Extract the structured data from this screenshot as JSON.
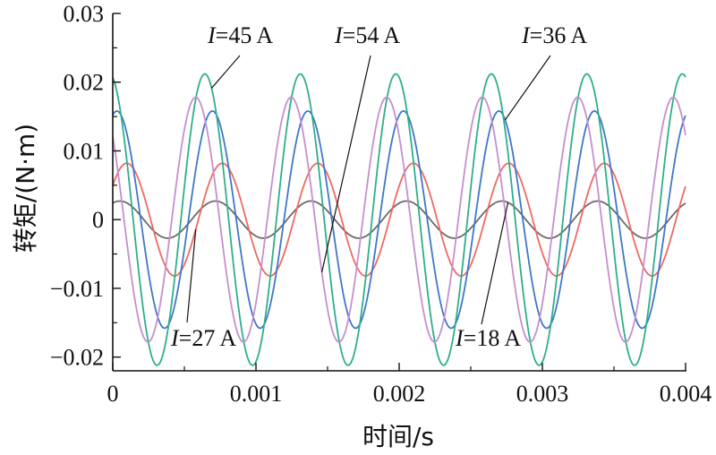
{
  "chart_data": {
    "type": "line",
    "xlabel": "时间/s",
    "ylabel": "转矩/(N·m)",
    "xlim": [
      0,
      0.004
    ],
    "ylim": [
      -0.022,
      0.03
    ],
    "x_ticks": [
      0,
      0.001,
      0.002,
      0.003,
      0.004
    ],
    "x_tick_labels": [
      "0",
      "0.001",
      "0.002",
      "0.003",
      "0.004"
    ],
    "y_ticks": [
      -0.02,
      -0.01,
      0,
      0.01,
      0.02,
      0.03
    ],
    "y_tick_labels": [
      "−0.02",
      "−0.01",
      "0",
      "0.01",
      "0.02",
      "0.03"
    ],
    "grid": false,
    "legend": "none",
    "period_s": 0.000667,
    "series": [
      {
        "name": "I=18 A",
        "color": "#6b6b6b",
        "amplitude": 0.0027,
        "phase_rad": 1.1
      },
      {
        "name": "I=27 A",
        "color": "#ee6a62",
        "amplitude": 0.0082,
        "phase_rad": 0.65
      },
      {
        "name": "I=36 A",
        "color": "#3f78c6",
        "amplitude": 0.0158,
        "phase_rad": 1.3
      },
      {
        "name": "I=45 A",
        "color": "#2fae8c",
        "amplitude": 0.0212,
        "phase_rad": 1.8
      },
      {
        "name": "I=54 A",
        "color": "#c58fd0",
        "amplitude": 0.0178,
        "phase_rad": 2.4
      }
    ],
    "annotations": [
      {
        "text_italic": "I",
        "text": "=45 A",
        "series": "I=45 A",
        "point_x": 0.00069
      },
      {
        "text_italic": "I",
        "text": "=54 A",
        "series": "I=54 A",
        "point_x": 0.00146
      },
      {
        "text_italic": "I",
        "text": "=36 A",
        "series": "I=36 A",
        "point_x": 0.00274
      },
      {
        "text_italic": "I",
        "text": "=27 A",
        "series": "I=27 A",
        "point_x": 0.00058
      },
      {
        "text_italic": "I",
        "text": "=18 A",
        "series": "I=18 A",
        "point_x": 0.00276
      }
    ]
  }
}
